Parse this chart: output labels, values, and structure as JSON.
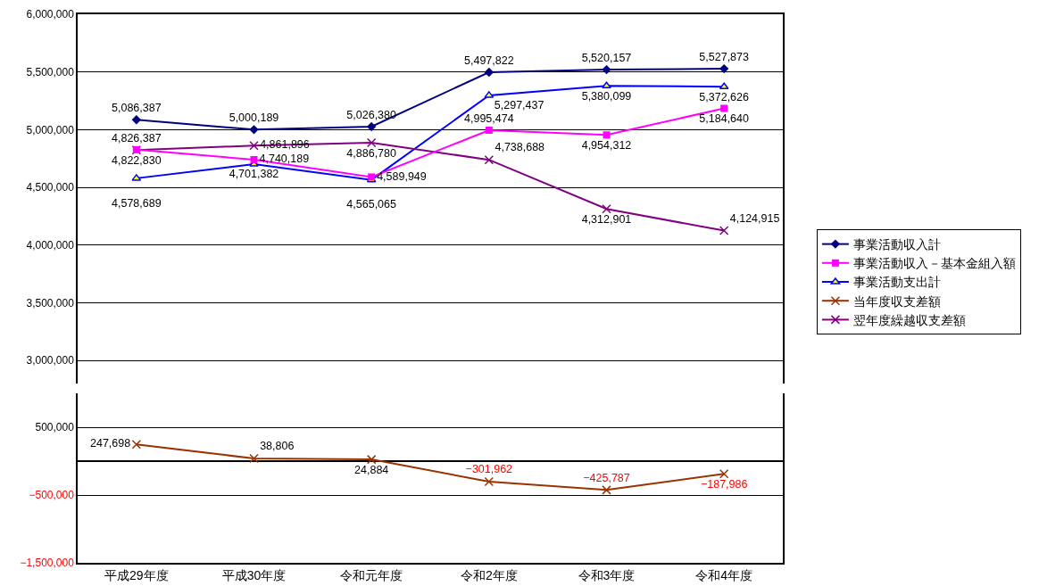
{
  "chart_data": [
    {
      "type": "line",
      "categories": [
        "平成29年度",
        "平成30年度",
        "令和元年度",
        "令和2年度",
        "令和3年度",
        "令和4年度"
      ],
      "ylim": [
        2800000,
        6000000
      ],
      "yticks": [
        {
          "value": 3000000,
          "label": "3,000,000"
        },
        {
          "value": 3500000,
          "label": "3,500,000"
        },
        {
          "value": 4000000,
          "label": "4,000,000"
        },
        {
          "value": 4500000,
          "label": "4,500,000"
        },
        {
          "value": 5000000,
          "label": "5,000,000"
        },
        {
          "value": 5500000,
          "label": "5,500,000"
        },
        {
          "value": 6000000,
          "label": "6,000,000"
        }
      ],
      "grid": "y",
      "legend": "right",
      "tick_labels": "y",
      "series": [
        {
          "name": "事業活動収入計",
          "color": "#000080",
          "marker": "diamond",
          "values": [
            5086387,
            5000189,
            5026380,
            5497822,
            5520157,
            5527873
          ],
          "value_labels": [
            "5,086,387",
            "5,000,189",
            "5,026,380",
            "5,497,822",
            "5,520,157",
            "5,527,873"
          ]
        },
        {
          "name": "事業活動収入－基本金組入額",
          "color": "#ff00ff",
          "marker": "square",
          "values": [
            4826387,
            4740189,
            4589949,
            4995474,
            4954312,
            5184640
          ],
          "value_labels": [
            "4,826,387",
            "4,740,189",
            "4,589,949",
            "4,995,474",
            "4,954,312",
            "5,184,640"
          ]
        },
        {
          "name": "事業活動支出計",
          "color": "#0000ff",
          "marker": "triangle",
          "values": [
            4578689,
            4701382,
            4565065,
            5297437,
            5380099,
            5372626
          ],
          "value_labels": [
            "4,578,689",
            "4,701,382",
            "4,565,065",
            "5,297,437",
            "5,380,099",
            "5,372,626"
          ]
        },
        {
          "name": "翌年度繰越収支差額",
          "color": "#800080",
          "marker": "cross",
          "values": [
            4822830,
            4861896,
            4886780,
            4738688,
            4312901,
            4124915
          ],
          "value_labels": [
            "4,822,830",
            "4,861,896",
            "4,886,780",
            "4,738,688",
            "4,312,901",
            "4,124,915"
          ]
        }
      ]
    },
    {
      "type": "line",
      "categories": [
        "平成29年度",
        "平成30年度",
        "令和元年度",
        "令和2年度",
        "令和3年度",
        "令和4年度"
      ],
      "ylim": [
        -1500000,
        1000000
      ],
      "yticks": [
        {
          "value": 500000,
          "label": "500,000"
        },
        {
          "value": -500000,
          "label": "−500,000"
        },
        {
          "value": -1500000,
          "label": "−1,500,000"
        }
      ],
      "grid": "y",
      "legend": "right",
      "series": [
        {
          "name": "当年度収支差額",
          "color": "#993300",
          "marker": "cross",
          "values": [
            247698,
            38806,
            24884,
            -301962,
            -425787,
            -187986
          ],
          "value_labels": [
            "247,698",
            "38,806",
            "24,884",
            "−301,962",
            "−425,787",
            "−187,986"
          ]
        }
      ]
    }
  ]
}
